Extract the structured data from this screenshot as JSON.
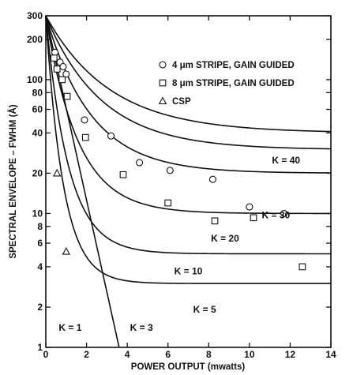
{
  "chart_data": {
    "type": "scatter",
    "title": "",
    "xlabel": "POWER OUTPUT (mwatts)",
    "ylabel": "SPECTRAL ENVELOPE – FWHM (Å)",
    "xlim": [
      0,
      14
    ],
    "ylim": [
      1,
      300
    ],
    "y_scale": "log",
    "x_ticks": [
      "0",
      "2",
      "4",
      "6",
      "8",
      "10",
      "12",
      "14"
    ],
    "y_ticks": [
      {
        "value": 1,
        "label": "1"
      },
      {
        "value": 2,
        "label": "2"
      },
      {
        "value": 4,
        "label": "4"
      },
      {
        "value": 6,
        "label": "6"
      },
      {
        "value": 8,
        "label": "8"
      },
      {
        "value": 10,
        "label": "10"
      },
      {
        "value": 20,
        "label": "20"
      },
      {
        "value": 40,
        "label": "40"
      },
      {
        "value": 60,
        "label": "60"
      },
      {
        "value": 80,
        "label": "80"
      },
      {
        "value": 100,
        "label": "100"
      },
      {
        "value": 200,
        "label": "200"
      },
      {
        "value": 300,
        "label": "300"
      }
    ],
    "legend_position": "top-right",
    "grid": false,
    "series": [
      {
        "name": "4 μm STRIPE, GAIN GUIDED",
        "marker": "circle",
        "points": [
          [
            0.45,
            160
          ],
          [
            0.7,
            135
          ],
          [
            0.85,
            125
          ],
          [
            1.0,
            110
          ],
          [
            1.9,
            50
          ],
          [
            3.2,
            38
          ],
          [
            4.6,
            24
          ],
          [
            6.1,
            21
          ],
          [
            8.2,
            18
          ],
          [
            10.0,
            11.2
          ],
          [
            11.7,
            10
          ]
        ]
      },
      {
        "name": "8 μm STRIPE, GAIN GUIDED",
        "marker": "square",
        "points": [
          [
            0.4,
            145
          ],
          [
            0.55,
            120
          ],
          [
            0.8,
            100
          ],
          [
            1.05,
            75
          ],
          [
            1.95,
            37
          ],
          [
            3.8,
            19.5
          ],
          [
            6.0,
            12
          ],
          [
            8.3,
            8.8
          ],
          [
            10.2,
            9.3
          ],
          [
            12.6,
            4
          ]
        ]
      },
      {
        "name": "CSP",
        "marker": "triangle",
        "points": [
          [
            0.55,
            20
          ],
          [
            1.0,
            5.2
          ]
        ]
      }
    ],
    "model_curves": [
      {
        "label": "K = 40",
        "k": 40,
        "label_at": [
          11.8,
          25
        ]
      },
      {
        "label": "K = 30",
        "k": 30,
        "label_at": [
          11.3,
          9.7
        ]
      },
      {
        "label": "K = 20",
        "k": 20,
        "label_at": [
          8.8,
          6.5
        ]
      },
      {
        "label": "K = 10",
        "k": 10,
        "label_at": [
          7.0,
          3.7
        ]
      },
      {
        "label": "K = 5",
        "k": 5,
        "label_at": [
          7.8,
          1.92
        ]
      },
      {
        "label": "K = 3",
        "k": 3,
        "label_at": [
          4.7,
          1.4
        ]
      },
      {
        "label": "K = 1",
        "k": 1,
        "label_at": [
          1.2,
          1.4
        ]
      }
    ]
  },
  "colors": {
    "ink": "#111111",
    "background": "#ffffff"
  }
}
